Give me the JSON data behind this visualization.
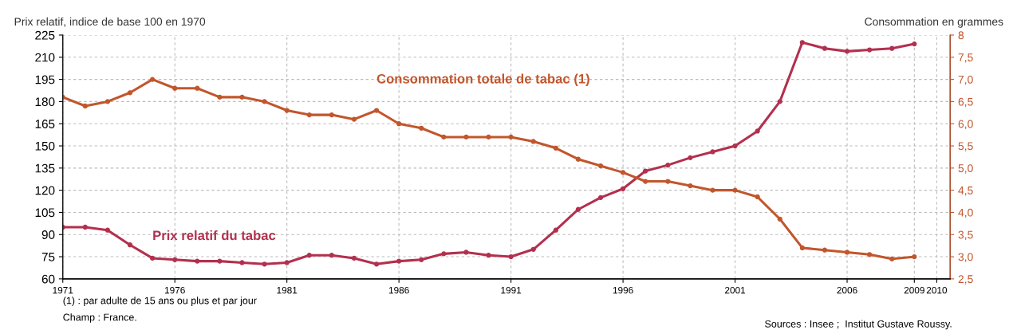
{
  "chart_data": {
    "type": "line",
    "ylabel": "Prix relatif, indice de base 100 en 1970",
    "y2label": "Consommation en grammes",
    "x": [
      1971,
      1972,
      1973,
      1974,
      1975,
      1976,
      1977,
      1978,
      1979,
      1980,
      1981,
      1982,
      1983,
      1984,
      1985,
      1986,
      1987,
      1988,
      1989,
      1990,
      1991,
      1992,
      1993,
      1994,
      1995,
      1996,
      1997,
      1998,
      1999,
      2000,
      2001,
      2002,
      2003,
      2004,
      2005,
      2006,
      2007,
      2008,
      2009
    ],
    "series": [
      {
        "name": "Consommation totale de tabac (1)",
        "color": "#c2562c",
        "axis": "y2",
        "values": [
          6.6,
          6.4,
          6.5,
          6.7,
          7.0,
          6.8,
          6.8,
          6.6,
          6.6,
          6.5,
          6.3,
          6.2,
          6.2,
          6.1,
          6.3,
          6.0,
          5.9,
          5.7,
          5.7,
          5.7,
          5.7,
          5.6,
          5.45,
          5.2,
          5.05,
          4.9,
          4.7,
          4.7,
          4.6,
          4.5,
          4.5,
          4.35,
          3.85,
          3.2,
          3.15,
          3.1,
          3.05,
          2.95,
          3.0
        ]
      },
      {
        "name": "Prix relatif du tabac",
        "color": "#b3304e",
        "values": [
          95,
          95,
          93,
          83,
          74,
          73,
          72,
          72,
          71,
          70,
          71,
          76,
          76,
          74,
          70,
          72,
          73,
          77,
          78,
          76,
          75,
          80,
          93,
          107,
          115,
          121,
          133,
          137,
          142,
          146,
          150,
          160,
          180,
          220,
          216,
          214,
          215,
          216,
          219
        ]
      }
    ],
    "xlim": [
      1971,
      2010.6
    ],
    "xticks": [
      1971,
      1976,
      1981,
      1986,
      1991,
      1996,
      2001,
      2006,
      2009,
      2010
    ],
    "ylim": [
      60,
      225
    ],
    "yticks": [
      60,
      75,
      90,
      105,
      120,
      135,
      150,
      165,
      180,
      195,
      210,
      225
    ],
    "y2lim": [
      2.5,
      8
    ],
    "y2ticks": [
      {
        "value": 2.5,
        "label": "2,5"
      },
      {
        "value": 3.0,
        "label": "3,0"
      },
      {
        "value": 3.5,
        "label": "3,5"
      },
      {
        "value": 4.0,
        "label": "4,0"
      },
      {
        "value": 4.5,
        "label": "4,5"
      },
      {
        "value": 5.0,
        "label": "5,0"
      },
      {
        "value": 5.5,
        "label": "5,5"
      },
      {
        "value": 6.0,
        "label": "6,0"
      },
      {
        "value": 6.5,
        "label": "6,5"
      },
      {
        "value": 7.0,
        "label": "7,0"
      },
      {
        "value": 7.5,
        "label": "7,5"
      },
      8
    ],
    "grid": true,
    "marker": "circle",
    "line_style": "solid",
    "annotations": [
      "(1) : par adulte de 15 ans ou plus et par jour",
      "Champ : France.",
      "Sources : Insee ;  Institut Gustave Roussy."
    ]
  }
}
